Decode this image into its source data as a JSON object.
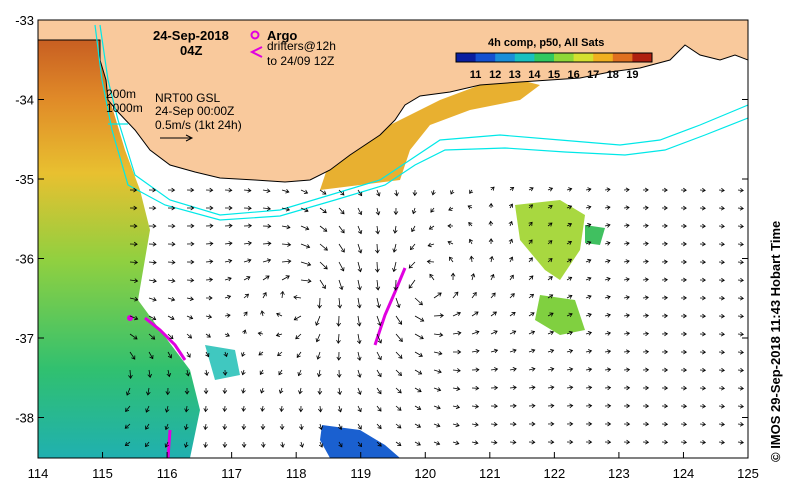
{
  "map": {
    "date": "24-Sep-2018",
    "time": "04Z",
    "composite_label": "4h comp, p50, All Sats",
    "colorbar_ticks": [
      "11",
      "12",
      "13",
      "14",
      "15",
      "16",
      "17",
      "18",
      "19"
    ],
    "colorbar_colors": [
      "#0a1ea0",
      "#1450d0",
      "#1a8ed8",
      "#18c0c0",
      "#30c860",
      "#8ed838",
      "#d4e030",
      "#f0b020",
      "#e07020",
      "#b02010"
    ],
    "argo_label": "Argo",
    "drifters_label_1": "drifters@12h",
    "drifters_label_2": "to 24/09 12Z",
    "isobath_1": "200m",
    "isobath_2": "1000m",
    "current_source": "NRT00 GSL",
    "current_time": "24-Sep 00:00Z",
    "scale_label": "0.5m/s (1kt 24h)",
    "credit": "© IMOS 29-Sep-2018 11:43 Hobart Time",
    "x_ticks": [
      "114",
      "115",
      "116",
      "117",
      "118",
      "119",
      "120",
      "121",
      "122",
      "123",
      "124",
      "125"
    ],
    "y_ticks": [
      "-33",
      "-34",
      "-35",
      "-36",
      "-37",
      "-38"
    ],
    "land_color": "#f9c99c",
    "drifter_color": "#e000e0",
    "isobath_color": "#00e8e8"
  }
}
